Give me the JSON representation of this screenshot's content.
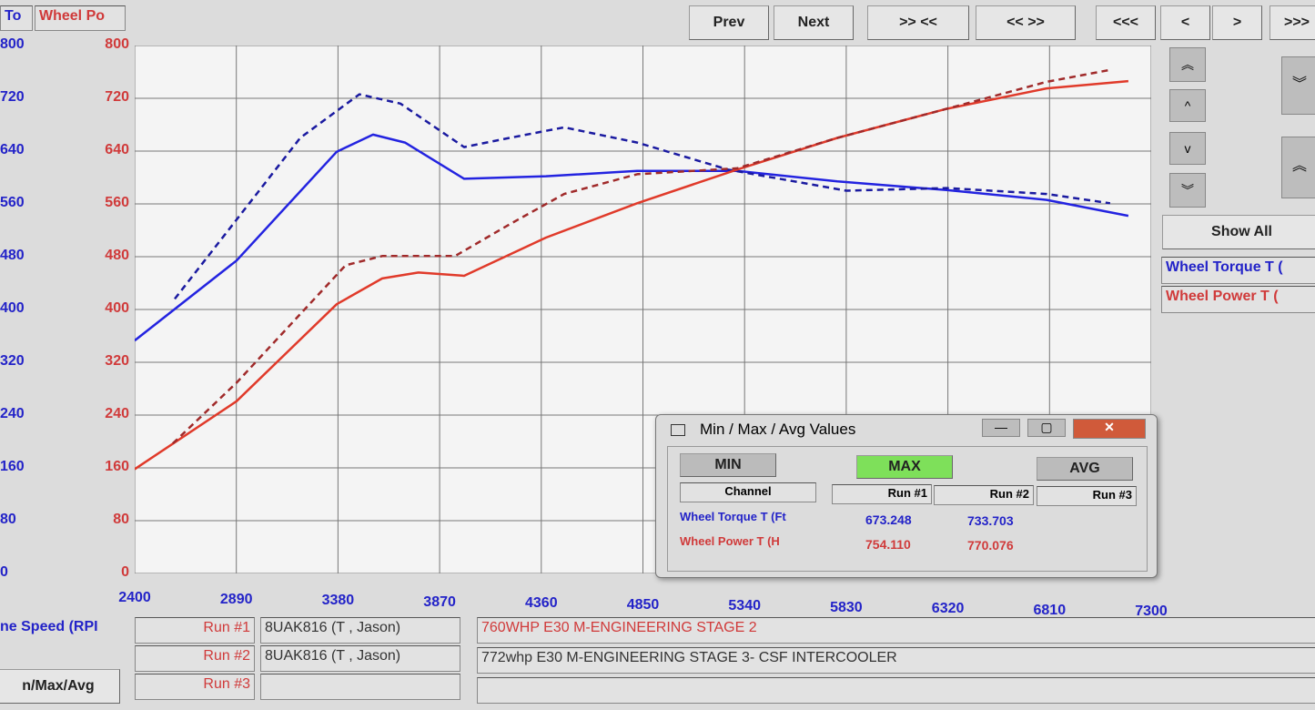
{
  "header": {
    "left_label": "To",
    "right_label": "Wheel Po"
  },
  "nav": {
    "prev": "Prev",
    "next": "Next",
    "zoom_in": ">> <<",
    "zoom_out": "<< >>",
    "far_left": "<<<",
    "left": "<",
    "right": ">",
    "far_right": ">>>",
    "up_fast": "︽",
    "up": "^",
    "down": "v",
    "down_fast": "︾",
    "show_all": "Show All"
  },
  "channels": [
    {
      "name": "Wheel Torque T (",
      "color": "#2323c8"
    },
    {
      "name": "Wheel Power T (",
      "color": "#d03a3a"
    }
  ],
  "x_axis_label": "ne Speed (RPI",
  "minmax_button": "n/Max/Avg",
  "runs": [
    {
      "label": "Run #1",
      "vehicle": "8UAK816 (T , Jason)",
      "description": "760WHP E30 M-ENGINEERING STAGE 2"
    },
    {
      "label": "Run #2",
      "vehicle": "8UAK816 (T , Jason)",
      "description": "772whp E30 M-ENGINEERING STAGE 3- CSF INTERCOOLER"
    },
    {
      "label": "Run #3",
      "vehicle": "",
      "description": ""
    }
  ],
  "dialog": {
    "title": "Min / Max / Avg Values",
    "min": "MIN",
    "max": "MAX",
    "avg": "AVG",
    "columns": [
      "Channel",
      "Run #1",
      "Run #2",
      "Run #3"
    ],
    "rows": [
      {
        "channel": "Wheel Torque T (Ft",
        "run1": "673.248",
        "run2": "733.703",
        "run3": "",
        "color": "#2323c8"
      },
      {
        "channel": "Wheel Power T (H",
        "run1": "754.110",
        "run2": "770.076",
        "run3": "",
        "color": "#d03a3a"
      }
    ],
    "max_active_color": "#7ee05a"
  },
  "chart_data": {
    "type": "line",
    "xlim": [
      2400,
      7300
    ],
    "ylim": [
      0,
      800
    ],
    "grid": true,
    "x_ticks": [
      "2400",
      "2890",
      "3380",
      "3870",
      "4360",
      "4850",
      "5340",
      "5830",
      "6320",
      "6810",
      "7300"
    ],
    "y_ticks": [
      "0",
      "80",
      "160",
      "240",
      "320",
      "400",
      "480",
      "560",
      "640",
      "720",
      "800"
    ],
    "series": [
      {
        "name": "Wheel Torque T (Run #1)",
        "color": "#2323e0",
        "dash": false,
        "points": [
          [
            2400,
            353
          ],
          [
            2891,
            474
          ],
          [
            3374,
            639
          ],
          [
            3549,
            665
          ],
          [
            3703,
            653
          ],
          [
            3988,
            598
          ],
          [
            4383,
            602
          ],
          [
            4822,
            610
          ],
          [
            5304,
            610
          ],
          [
            5787,
            594
          ],
          [
            6313,
            581
          ],
          [
            6796,
            566
          ],
          [
            7190,
            542
          ]
        ]
      },
      {
        "name": "Wheel Torque T (Run #2)",
        "color": "#1a1aa0",
        "dash": true,
        "points": [
          [
            2593,
            416
          ],
          [
            2891,
            536
          ],
          [
            3198,
            660
          ],
          [
            3483,
            726
          ],
          [
            3681,
            712
          ],
          [
            3988,
            646
          ],
          [
            4207,
            660
          ],
          [
            4470,
            676
          ],
          [
            4822,
            653
          ],
          [
            5260,
            612
          ],
          [
            5831,
            580
          ],
          [
            6313,
            584
          ],
          [
            6796,
            575
          ],
          [
            7102,
            561
          ]
        ]
      },
      {
        "name": "Wheel Power T (Run #1)",
        "color": "#e03a2a",
        "dash": false,
        "points": [
          [
            2400,
            158
          ],
          [
            2891,
            261
          ],
          [
            3374,
            408
          ],
          [
            3593,
            447
          ],
          [
            3768,
            456
          ],
          [
            3988,
            451
          ],
          [
            4383,
            509
          ],
          [
            4822,
            561
          ],
          [
            5304,
            612
          ],
          [
            5787,
            660
          ],
          [
            6313,
            704
          ],
          [
            6796,
            735
          ],
          [
            7190,
            746
          ]
        ]
      },
      {
        "name": "Wheel Power T (Run #2)",
        "color": "#a02a2a",
        "dash": true,
        "points": [
          [
            2584,
            197
          ],
          [
            2891,
            289
          ],
          [
            3417,
            467
          ],
          [
            3593,
            481
          ],
          [
            3944,
            481
          ],
          [
            4207,
            529
          ],
          [
            4470,
            575
          ],
          [
            4822,
            605
          ],
          [
            5304,
            614
          ],
          [
            5787,
            660
          ],
          [
            6313,
            704
          ],
          [
            6796,
            745
          ],
          [
            7102,
            763
          ]
        ]
      }
    ]
  }
}
